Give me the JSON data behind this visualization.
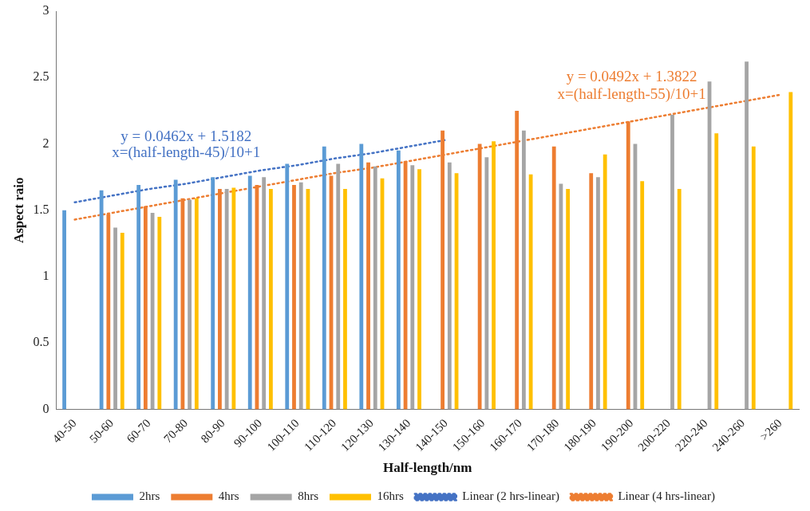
{
  "chart_data": {
    "type": "bar",
    "xlabel": "Half-length/nm",
    "ylabel": "Aspect raio",
    "categories": [
      "40-50",
      "50-60",
      "60-70",
      "70-80",
      "80-90",
      "90-100",
      "100-110",
      "110-120",
      "120-130",
      "130-140",
      "140-150",
      "150-160",
      "160-170",
      "170-180",
      "180-190",
      "190-200",
      "200-220",
      "220-240",
      "240-260",
      ">260"
    ],
    "series": [
      {
        "name": "2hrs",
        "color": "#5b9bd5",
        "values": [
          1.5,
          1.65,
          1.69,
          1.73,
          1.75,
          1.76,
          1.85,
          1.98,
          2.0,
          1.95,
          null,
          null,
          null,
          null,
          null,
          null,
          null,
          null,
          null,
          null
        ]
      },
      {
        "name": "4hrs",
        "color": "#ed7d31",
        "values": [
          null,
          1.47,
          1.53,
          1.59,
          1.66,
          1.69,
          1.69,
          1.76,
          1.86,
          1.87,
          2.1,
          2.0,
          2.25,
          1.98,
          1.78,
          2.17,
          null,
          null,
          null,
          null
        ]
      },
      {
        "name": "8hrs",
        "color": "#a5a5a5",
        "values": [
          null,
          1.37,
          1.48,
          1.58,
          1.66,
          1.75,
          1.71,
          1.85,
          1.83,
          1.84,
          1.86,
          1.9,
          2.1,
          1.7,
          1.75,
          2.0,
          2.22,
          2.47,
          2.62,
          null
        ]
      },
      {
        "name": "16hrs",
        "color": "#ffc000",
        "values": [
          null,
          1.33,
          1.45,
          1.59,
          1.67,
          1.66,
          1.66,
          1.66,
          1.74,
          1.81,
          1.78,
          2.02,
          1.77,
          1.66,
          1.92,
          1.72,
          1.66,
          2.08,
          1.98,
          2.39
        ]
      },
      {
        "name": "Linear (2 hrs-linear)",
        "type": "line",
        "color": "#4472c4",
        "line_style": "dotted",
        "marker": "none",
        "values": [
          1.56,
          1.61,
          1.66,
          1.7,
          1.75,
          1.8,
          1.84,
          1.89,
          1.93,
          1.98,
          2.03,
          null,
          null,
          null,
          null,
          null,
          null,
          null,
          null,
          null
        ]
      },
      {
        "name": "Linear (4 hrs-linear)",
        "type": "line",
        "color": "#ed7d31",
        "line_style": "dotted",
        "marker": "none",
        "values": [
          1.43,
          1.48,
          1.53,
          1.58,
          1.63,
          1.68,
          1.73,
          1.78,
          1.82,
          1.87,
          1.92,
          1.97,
          2.02,
          2.07,
          2.12,
          2.17,
          2.22,
          2.27,
          2.32,
          2.37
        ]
      }
    ],
    "ylim": [
      0,
      3
    ],
    "yticks": [
      0,
      0.5,
      1,
      1.5,
      2,
      2.5,
      3
    ],
    "grid": false,
    "legend": "bottom",
    "annotations": [
      "y = 0.0462x + 1.5182",
      "x=(half-length-45)/10+1",
      "y = 0.0492x + 1.3822",
      "x=(half-length-55)/10+1"
    ]
  }
}
